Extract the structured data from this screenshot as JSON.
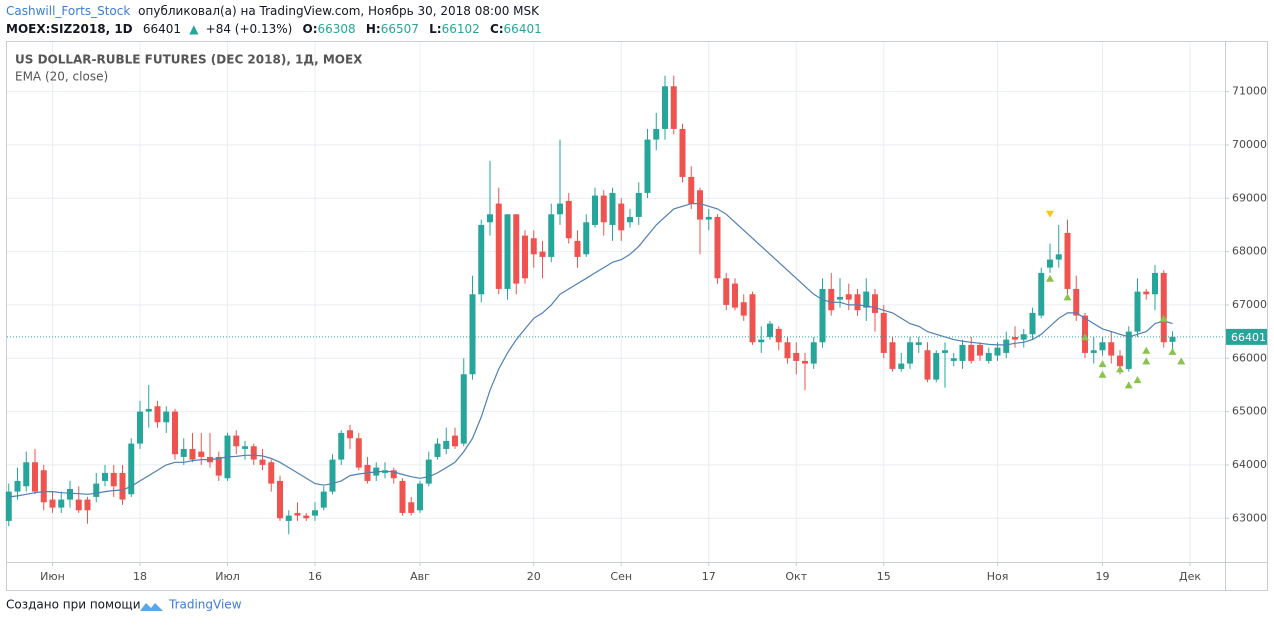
{
  "header": {
    "author": "Cashwill_Forts_Stock",
    "published": "опубликовал(а) на TradingView.com, Ноябрь 30, 2018 08:00 MSK",
    "symbol": "MOEX:SIZ2018, 1D",
    "price": "66401",
    "change": "+84 (+0.13%)",
    "o_label": "O:",
    "o": "66308",
    "h_label": "H:",
    "h": "66507",
    "l_label": "L:",
    "l": "66102",
    "c_label": "C:",
    "c": "66401"
  },
  "footer": {
    "made_with": "Создано при помощи",
    "brand": "TradingView"
  },
  "chart_data": {
    "type": "candlestick",
    "title": "US DOLLAR-RUBLE FUTURES (DEC 2018), 1Д, MOEX",
    "up_color": "#26a69a",
    "down_color": "#ef5350",
    "grid": true,
    "xlim": [
      -0.2,
      139
    ],
    "xticks": [
      {
        "value": 5,
        "label": "Июн"
      },
      {
        "value": 15,
        "label": "18"
      },
      {
        "value": 25,
        "label": "Июл"
      },
      {
        "value": 35,
        "label": "16"
      },
      {
        "value": 47,
        "label": "Авг"
      },
      {
        "value": 60,
        "label": "20"
      },
      {
        "value": 70,
        "label": "Сен"
      },
      {
        "value": 80,
        "label": "17"
      },
      {
        "value": 90,
        "label": "Окт"
      },
      {
        "value": 100,
        "label": "15"
      },
      {
        "value": 113,
        "label": "Ноя"
      },
      {
        "value": 125,
        "label": "19"
      },
      {
        "value": 135,
        "label": "Дек"
      }
    ],
    "ylim": [
      62180,
      71930
    ],
    "yticks": [
      63000,
      64000,
      65000,
      66000,
      67000,
      68000,
      69000,
      70000,
      71000
    ],
    "last_price": 66401,
    "open": [
      62950,
      63500,
      63600,
      64050,
      63900,
      63350,
      63200,
      63350,
      63350,
      63350,
      63400,
      63700,
      63850,
      63850,
      63450,
      64400,
      65000,
      65100,
      64800,
      65000,
      64150,
      64300,
      64250,
      64150,
      64150,
      63750,
      64550,
      64300,
      64350,
      64100,
      64050,
      63700,
      62950,
      63100,
      63050,
      63050,
      63200,
      63500,
      64100,
      64650,
      64500,
      64000,
      63800,
      63850,
      63900,
      63700,
      63300,
      63150,
      63650,
      64150,
      64300,
      64550,
      64400,
      65700,
      67200,
      68550,
      68900,
      67300,
      68700,
      68300,
      68250,
      68000,
      67900,
      68700,
      68950,
      68200,
      67950,
      68500,
      69050,
      68500,
      68900,
      68550,
      68650,
      69100,
      70100,
      70300,
      71100,
      70300,
      69400,
      69150,
      68600,
      68650,
      67500,
      67400,
      67050,
      67200,
      66300,
      66400,
      66550,
      66300,
      66100,
      65950,
      65900,
      66300,
      67300,
      67100,
      67200,
      67200,
      66950,
      67200,
      66850,
      66300,
      65800,
      65900,
      66250,
      66150,
      65600,
      66100,
      65950,
      65950,
      66250,
      66250,
      65950,
      66050,
      66100,
      66400,
      66350,
      66450,
      66800,
      67700,
      67850,
      68350,
      67300,
      66800,
      66100,
      66150,
      66300,
      66050,
      65800,
      66500,
      67250,
      67200,
      67600,
      66308
    ],
    "high": [
      63650,
      63950,
      64250,
      64300,
      64000,
      63500,
      63500,
      63700,
      63600,
      63400,
      63850,
      64000,
      64000,
      64000,
      64500,
      65200,
      65500,
      65200,
      65100,
      65050,
      64500,
      64600,
      64600,
      64600,
      64250,
      64600,
      64650,
      64450,
      64400,
      64300,
      64100,
      63800,
      63150,
      63300,
      63100,
      63300,
      63600,
      64200,
      64650,
      64750,
      64600,
      64150,
      64050,
      64050,
      63950,
      63750,
      63400,
      63700,
      64250,
      64500,
      64700,
      64700,
      66000,
      67550,
      68600,
      69700,
      69200,
      68700,
      68700,
      68400,
      68400,
      68200,
      68900,
      70100,
      69100,
      68400,
      68700,
      69200,
      69150,
      69200,
      69000,
      68800,
      69300,
      70300,
      70600,
      71300,
      71300,
      70400,
      69600,
      69200,
      68800,
      68700,
      67600,
      67500,
      67200,
      67250,
      66600,
      66700,
      66600,
      66400,
      66300,
      66100,
      66400,
      67500,
      67600,
      67500,
      67400,
      67300,
      67500,
      67300,
      67000,
      66400,
      66100,
      66400,
      66400,
      66300,
      66150,
      66300,
      66100,
      66350,
      66400,
      66300,
      66200,
      66300,
      66500,
      66600,
      66550,
      66950,
      67700,
      68150,
      68500,
      68600,
      67550,
      66850,
      66400,
      66400,
      66500,
      66150,
      66600,
      67500,
      67300,
      67750,
      67650,
      66507
    ],
    "low": [
      62850,
      63350,
      63500,
      63450,
      63150,
      63100,
      63100,
      63200,
      63100,
      62900,
      63300,
      63600,
      63400,
      63250,
      63400,
      64300,
      64700,
      64700,
      64600,
      64100,
      64000,
      64050,
      64000,
      63950,
      63700,
      63700,
      64200,
      64100,
      64000,
      63900,
      63500,
      62950,
      62700,
      62950,
      62950,
      62950,
      63150,
      63450,
      64000,
      64300,
      63900,
      63650,
      63700,
      63750,
      63650,
      63050,
      63050,
      63100,
      63600,
      64100,
      64200,
      64300,
      64350,
      65600,
      67050,
      68300,
      67200,
      67100,
      67200,
      67400,
      67700,
      67500,
      67800,
      68500,
      68150,
      67700,
      67900,
      68450,
      68300,
      68200,
      68200,
      68450,
      68500,
      69000,
      69900,
      70100,
      70200,
      69300,
      68800,
      67950,
      68400,
      67400,
      66900,
      66900,
      66700,
      66250,
      66100,
      66350,
      66150,
      65900,
      65700,
      65400,
      65800,
      66200,
      66800,
      66950,
      66900,
      66800,
      66700,
      66500,
      66000,
      65750,
      65750,
      65800,
      66100,
      65550,
      65550,
      65450,
      65850,
      65800,
      65900,
      65950,
      65900,
      65950,
      66000,
      66200,
      66200,
      66350,
      66750,
      67600,
      67700,
      67200,
      66700,
      66000,
      65900,
      66050,
      65900,
      65700,
      65750,
      66400,
      67100,
      66900,
      66200,
      66102
    ],
    "close": [
      63500,
      63700,
      64050,
      63500,
      63300,
      63200,
      63350,
      63550,
      63150,
      63150,
      63650,
      63850,
      63600,
      63350,
      64400,
      65000,
      65050,
      64800,
      65000,
      64200,
      64300,
      64100,
      64150,
      64050,
      63800,
      64550,
      64350,
      64350,
      64100,
      64000,
      63650,
      63000,
      63050,
      63050,
      63000,
      63150,
      63500,
      64100,
      64600,
      64500,
      63950,
      63700,
      63950,
      63900,
      63750,
      63100,
      63100,
      63650,
      64100,
      64400,
      64450,
      64350,
      65700,
      67200,
      68500,
      68700,
      67300,
      68700,
      67400,
      67500,
      67950,
      67900,
      68700,
      68900,
      68250,
      67900,
      68550,
      69050,
      68550,
      69100,
      68400,
      68650,
      69100,
      70100,
      70300,
      71100,
      70300,
      69400,
      68900,
      68600,
      68650,
      67500,
      67000,
      66950,
      66800,
      66300,
      66350,
      66650,
      66300,
      66000,
      65950,
      65900,
      66300,
      67300,
      66900,
      67150,
      67100,
      66900,
      67250,
      66850,
      66100,
      65800,
      65900,
      66300,
      66300,
      65600,
      66100,
      66150,
      66000,
      66250,
      65950,
      66050,
      66100,
      66200,
      66350,
      66350,
      66450,
      66850,
      67600,
      67850,
      67950,
      67300,
      66800,
      66100,
      66150,
      66300,
      66050,
      65850,
      66500,
      67250,
      67200,
      67600,
      66300,
      66401
    ],
    "series": [
      {
        "name": "EMA (20, close)",
        "color": "#4f7fb3",
        "values": [
          63400,
          63420,
          63450,
          63480,
          63500,
          63500,
          63480,
          63470,
          63460,
          63450,
          63470,
          63500,
          63520,
          63530,
          63600,
          63700,
          63800,
          63900,
          64000,
          64050,
          64050,
          64080,
          64100,
          64100,
          64120,
          64150,
          64160,
          64180,
          64180,
          64170,
          64120,
          64050,
          63950,
          63850,
          63750,
          63650,
          63620,
          63650,
          63700,
          63800,
          63830,
          63850,
          63870,
          63880,
          63870,
          63820,
          63780,
          63750,
          63780,
          63850,
          63950,
          64050,
          64250,
          64500,
          64900,
          65400,
          65800,
          66100,
          66350,
          66550,
          66750,
          66850,
          67000,
          67200,
          67300,
          67400,
          67500,
          67600,
          67700,
          67800,
          67850,
          67950,
          68100,
          68300,
          68500,
          68650,
          68800,
          68850,
          68900,
          68900,
          68850,
          68800,
          68700,
          68550,
          68400,
          68250,
          68100,
          67950,
          67800,
          67650,
          67500,
          67350,
          67200,
          67100,
          67050,
          67050,
          67000,
          67000,
          66980,
          66950,
          66900,
          66850,
          66750,
          66650,
          66600,
          66500,
          66450,
          66400,
          66350,
          66320,
          66300,
          66280,
          66260,
          66250,
          66250,
          66280,
          66300,
          66350,
          66450,
          66600,
          66750,
          66850,
          66850,
          66750,
          66650,
          66550,
          66500,
          66450,
          66400,
          66450,
          66500,
          66650,
          66700,
          66650
        ]
      }
    ],
    "signals": [
      {
        "color": "#8bc34a",
        "direction": "up",
        "x": [
          119,
          121,
          123,
          125,
          125,
          127,
          128,
          129,
          130,
          130,
          132,
          133,
          134
        ],
        "values": [
          67500,
          67150,
          66400,
          65900,
          65700,
          65800,
          65500,
          65600,
          66150,
          65950,
          66750,
          66130,
          65950
        ]
      },
      {
        "color": "#f5c518",
        "direction": "down",
        "x": [
          119
        ],
        "values": [
          68700
        ]
      }
    ]
  }
}
